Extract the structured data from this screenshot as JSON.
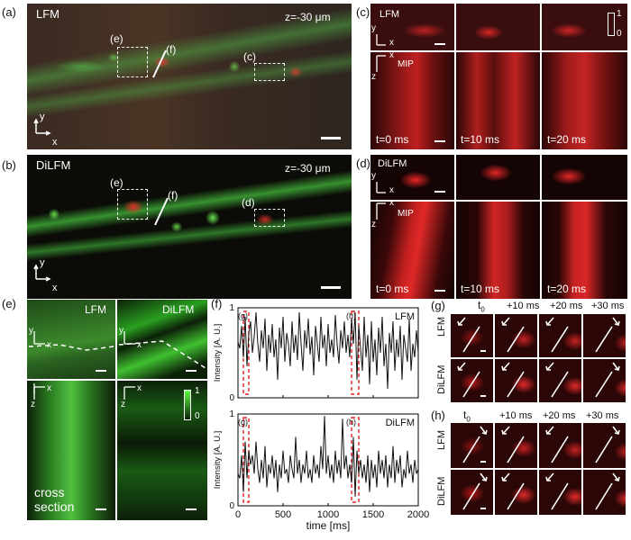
{
  "panel_labels": {
    "a": "(a)",
    "b": "(b)",
    "c": "(c)",
    "d": "(d)",
    "e": "(e)",
    "f": "(f)",
    "g": "(g)",
    "h": "(h)"
  },
  "panel_a": {
    "method": "LFM",
    "depth": "z=-30 μm",
    "roi_e": "(e)",
    "roi_f": "(f)",
    "roi_c": "(c)"
  },
  "panel_b": {
    "method": "DiLFM",
    "depth": "z=-30 μm",
    "roi_e": "(e)",
    "roi_f": "(f)",
    "roi_d": "(d)"
  },
  "axes": {
    "x": "x",
    "y": "y",
    "z": "z"
  },
  "panel_c": {
    "method": "LFM",
    "mip": "MIP",
    "times": [
      "t=0 ms",
      "t=10 ms",
      "t=20 ms"
    ],
    "cb_max": "1",
    "cb_min": "0"
  },
  "panel_d": {
    "method": "DiLFM",
    "mip": "MIP",
    "times": [
      "t=0 ms",
      "t=10 ms",
      "t=20 ms"
    ]
  },
  "panel_e": {
    "lfm": "LFM",
    "dilfm": "DiLFM",
    "cross": "cross\nsection",
    "cb_max": "1",
    "cb_min": "0"
  },
  "panel_g": {
    "t0": "t",
    "t0_sub": "0",
    "offsets": [
      "+10 ms",
      "+20 ms",
      "+30 ms"
    ],
    "rows": [
      "LFM",
      "DiLFM"
    ]
  },
  "panel_h": {
    "t0": "t",
    "t0_sub": "0",
    "offsets": [
      "+10 ms",
      "+20 ms",
      "+30 ms"
    ],
    "rows": [
      "LFM",
      "DiLFM"
    ]
  },
  "chart_data": [
    {
      "type": "line",
      "title": "LFM",
      "ylabel": "Intensity [A. U.]",
      "xlim": [
        0,
        2000
      ],
      "ylim": [
        0,
        1
      ],
      "yticks": [
        0,
        1
      ],
      "annotations": [
        "(g)",
        "(h)"
      ],
      "highlight_windows_ms": [
        [
          60,
          120
        ],
        [
          1260,
          1340
        ]
      ],
      "series": [
        {
          "x": [
            0,
            20,
            40,
            60,
            80,
            100,
            120,
            140,
            160,
            180,
            200,
            220,
            240,
            260,
            280,
            300,
            320,
            340,
            360,
            380,
            400,
            420,
            440,
            460,
            480,
            500,
            520,
            540,
            560,
            580,
            600,
            620,
            640,
            660,
            680,
            700,
            720,
            740,
            760,
            780,
            800,
            820,
            840,
            860,
            880,
            900,
            920,
            940,
            960,
            980,
            1000,
            1020,
            1040,
            1060,
            1080,
            1100,
            1120,
            1140,
            1160,
            1180,
            1200,
            1220,
            1240,
            1260,
            1280,
            1300,
            1320,
            1340,
            1360,
            1380,
            1400,
            1420,
            1440,
            1460,
            1480,
            1500,
            1520,
            1540,
            1560,
            1580,
            1600,
            1620,
            1640,
            1660,
            1680,
            1700,
            1720,
            1740,
            1760,
            1780,
            1800,
            1820,
            1840,
            1860,
            1880,
            1900,
            1920,
            1940,
            1960,
            1980,
            2000
          ],
          "y": [
            0.62,
            0.55,
            0.8,
            0.45,
            0.9,
            0.35,
            0.72,
            0.85,
            0.5,
            0.68,
            0.95,
            0.6,
            0.4,
            0.75,
            0.55,
            0.88,
            0.3,
            0.7,
            0.5,
            0.82,
            0.45,
            0.65,
            0.2,
            0.78,
            0.55,
            0.9,
            0.4,
            0.72,
            0.6,
            0.35,
            0.85,
            0.5,
            0.7,
            0.42,
            0.95,
            0.6,
            0.3,
            0.75,
            0.55,
            0.88,
            0.48,
            0.68,
            0.25,
            0.8,
            0.6,
            0.4,
            0.9,
            0.55,
            0.7,
            0.35,
            0.82,
            0.5,
            0.65,
            0.45,
            0.92,
            0.6,
            0.38,
            0.75,
            0.55,
            0.85,
            0.5,
            0.7,
            0.45,
            0.88,
            0.6,
            0.95,
            0.2,
            0.8,
            0.55,
            0.3,
            0.9,
            0.45,
            0.7,
            0.15,
            0.85,
            0.4,
            0.65,
            0.25,
            0.78,
            0.5,
            0.9,
            0.35,
            0.6,
            0.1,
            0.72,
            0.5,
            0.85,
            0.3,
            0.65,
            0.45,
            0.8,
            0.2,
            0.7,
            0.55,
            0.4,
            0.88,
            0.3,
            0.6,
            0.45,
            0.75,
            0.5
          ]
        }
      ]
    },
    {
      "type": "line",
      "title": "DiLFM",
      "xlabel": "time [ms]",
      "ylabel": "Intensity [A. U.]",
      "xlim": [
        0,
        2000
      ],
      "ylim": [
        0,
        1
      ],
      "xticks": [
        0,
        500,
        1000,
        1500,
        2000
      ],
      "yticks": [
        0,
        1
      ],
      "annotations": [
        "(g)",
        "(h)"
      ],
      "highlight_windows_ms": [
        [
          60,
          120
        ],
        [
          1260,
          1340
        ]
      ],
      "series": [
        {
          "x": [
            0,
            20,
            40,
            60,
            80,
            100,
            120,
            140,
            160,
            180,
            200,
            220,
            240,
            260,
            280,
            300,
            320,
            340,
            360,
            380,
            400,
            420,
            440,
            460,
            480,
            500,
            520,
            540,
            560,
            580,
            600,
            620,
            640,
            660,
            680,
            700,
            720,
            740,
            760,
            780,
            800,
            820,
            840,
            860,
            880,
            900,
            920,
            940,
            960,
            980,
            1000,
            1020,
            1040,
            1060,
            1080,
            1100,
            1120,
            1140,
            1160,
            1180,
            1200,
            1220,
            1240,
            1260,
            1280,
            1300,
            1320,
            1340,
            1360,
            1380,
            1400,
            1420,
            1440,
            1460,
            1480,
            1500,
            1520,
            1540,
            1560,
            1580,
            1600,
            1620,
            1640,
            1660,
            1680,
            1700,
            1720,
            1740,
            1760,
            1780,
            1800,
            1820,
            1840,
            1860,
            1880,
            1900,
            1920,
            1940,
            1960,
            1980,
            2000
          ],
          "y": [
            0.35,
            0.3,
            0.55,
            0.15,
            0.7,
            0.3,
            0.6,
            0.45,
            0.55,
            0.35,
            0.7,
            0.4,
            0.25,
            0.5,
            0.3,
            0.65,
            0.2,
            0.45,
            0.35,
            0.55,
            0.3,
            0.5,
            0.15,
            0.45,
            0.3,
            0.6,
            0.35,
            0.4,
            0.25,
            0.55,
            0.4,
            0.3,
            0.75,
            0.35,
            0.5,
            0.25,
            0.45,
            0.35,
            0.6,
            0.3,
            0.4,
            0.25,
            0.55,
            0.35,
            0.45,
            0.3,
            0.65,
            0.4,
            0.98,
            0.35,
            0.55,
            0.3,
            0.45,
            0.25,
            0.6,
            0.35,
            0.5,
            0.3,
            0.95,
            0.4,
            0.55,
            0.3,
            0.45,
            0.25,
            0.75,
            0.1,
            0.6,
            0.35,
            0.5,
            0.3,
            0.45,
            0.25,
            0.55,
            0.15,
            0.5,
            0.3,
            0.45,
            0.2,
            0.6,
            0.35,
            0.5,
            0.3,
            0.55,
            0.2,
            0.45,
            0.3,
            0.65,
            0.25,
            0.5,
            0.35,
            0.55,
            0.2,
            0.4,
            0.3,
            0.6,
            0.35,
            0.45,
            0.25,
            0.5,
            0.35,
            0.4
          ]
        }
      ]
    }
  ]
}
